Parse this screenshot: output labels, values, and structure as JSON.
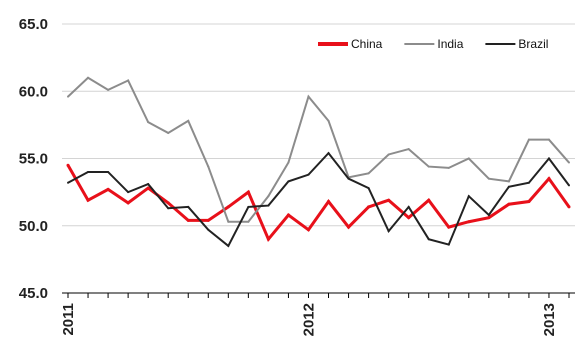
{
  "chart_data": {
    "type": "line",
    "title": "",
    "xlabel": "",
    "ylabel": "",
    "note": "",
    "ylim": [
      45,
      65
    ],
    "y_ticks": [
      "45.0",
      "50.0",
      "55.0",
      "60.0",
      "65.0"
    ],
    "y_tick_values": [
      45,
      50,
      55,
      60,
      65
    ],
    "x_tick_labels": [
      "2011",
      "2012",
      "2013"
    ],
    "x_tick_months": [
      "2011-01",
      "2012-01",
      "2013-01"
    ],
    "x": [
      "2011-01",
      "2011-02",
      "2011-03",
      "2011-04",
      "2011-05",
      "2011-06",
      "2011-07",
      "2011-08",
      "2011-09",
      "2011-10",
      "2011-11",
      "2011-12",
      "2012-01",
      "2012-02",
      "2012-03",
      "2012-04",
      "2012-05",
      "2012-06",
      "2012-07",
      "2012-08",
      "2012-09",
      "2012-10",
      "2012-11",
      "2012-12",
      "2013-01",
      "2013-02"
    ],
    "grid": "horizontal",
    "legend_position": "top-right",
    "series": [
      {
        "name": "China",
        "color": "#e8101a",
        "values": [
          54.5,
          51.9,
          52.7,
          51.7,
          52.8,
          51.7,
          50.4,
          50.4,
          51.4,
          52.5,
          49.0,
          50.8,
          49.7,
          51.8,
          49.9,
          51.4,
          51.9,
          50.6,
          51.9,
          49.9,
          50.3,
          50.6,
          51.6,
          51.8,
          53.5,
          51.4
        ]
      },
      {
        "name": "India",
        "color": "#8c8c8c",
        "values": [
          59.6,
          61.0,
          60.1,
          60.8,
          57.7,
          56.9,
          57.8,
          54.4,
          50.3,
          50.3,
          52.2,
          54.7,
          59.6,
          57.8,
          53.6,
          53.9,
          55.3,
          55.7,
          54.4,
          54.3,
          55.0,
          53.5,
          53.3,
          56.4,
          56.4,
          54.7
        ]
      },
      {
        "name": "Brazil",
        "color": "#222222",
        "values": [
          53.2,
          54.0,
          54.0,
          52.5,
          53.1,
          51.3,
          51.4,
          49.7,
          48.5,
          51.4,
          51.5,
          53.3,
          53.8,
          55.4,
          53.5,
          52.8,
          49.6,
          51.4,
          49.0,
          48.6,
          52.2,
          50.8,
          52.9,
          53.2,
          55.0,
          53.0
        ]
      }
    ]
  }
}
